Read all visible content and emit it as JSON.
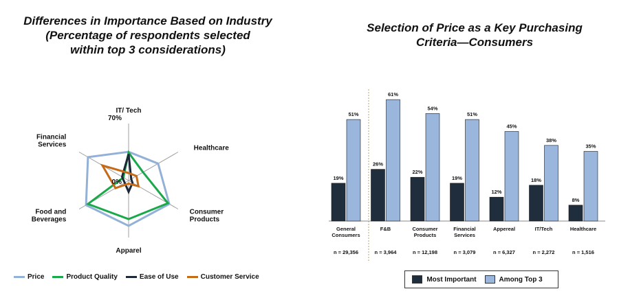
{
  "left_title": {
    "line1": "Differences in Importance Based on Industry",
    "line2": "(Percentage of respondents selected",
    "line3": "within top 3 considerations)"
  },
  "right_title": {
    "line1": "Selection of Price as a Key Purchasing",
    "line2": "Criteria—Consumers"
  },
  "colors": {
    "price": "#93b1d7",
    "product_quality": "#1aa84a",
    "ease_of_use": "#1c2838",
    "customer_service": "#c56a16",
    "most_important": "#1f2d3d",
    "among_top3": "#9ab6dc"
  },
  "chart_data": [
    {
      "type": "radar",
      "axes": [
        "IT/ Tech",
        "Healthcare",
        "Consumer\nProducts",
        "Apparel",
        "Food and\nBeverages",
        "Financial\nServices"
      ],
      "range": [
        0,
        70
      ],
      "tick_labels": [
        "0%",
        "70%"
      ],
      "series": [
        {
          "name": "Price",
          "values": [
            38,
            45,
            62,
            60,
            65,
            62
          ]
        },
        {
          "name": "Product Quality",
          "values": [
            37,
            22,
            60,
            51,
            62,
            8
          ]
        },
        {
          "name": "Ease of Use",
          "values": [
            35,
            4,
            6,
            15,
            6,
            10
          ]
        },
        {
          "name": "Customer Service",
          "values": [
            10,
            12,
            15,
            4,
            20,
            40
          ]
        }
      ],
      "legend": "bottom"
    },
    {
      "type": "bar",
      "categories": [
        "General\nConsumers",
        "F&B",
        "Consumer\nProducts",
        "Financial\nServices",
        "Appereal",
        "IT/Tech",
        "Healthcare"
      ],
      "sample_sizes": [
        "n = 29,356",
        "n = 3,964",
        "n = 12,198",
        "n = 3,079",
        "n = 6,327",
        "n = 2,272",
        "n = 1,516"
      ],
      "series": [
        {
          "name": "Most Important",
          "values": [
            19,
            26,
            22,
            19,
            12,
            18,
            8
          ]
        },
        {
          "name": "Among Top 3",
          "values": [
            51,
            61,
            54,
            51,
            45,
            38,
            35
          ]
        }
      ],
      "value_suffix": "%",
      "ylim": [
        0,
        70
      ],
      "grid": false,
      "legend": "bottom"
    }
  ]
}
